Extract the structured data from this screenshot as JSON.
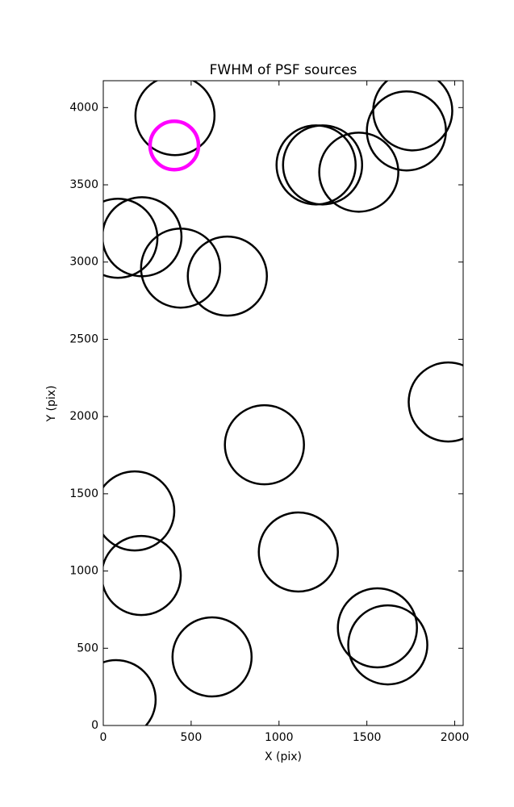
{
  "chart_data": {
    "type": "scatter",
    "title": "FWHM of PSF sources",
    "x_label": "X (pix)",
    "y_label": "Y (pix)",
    "xlim": [
      0,
      2048
    ],
    "ylim": [
      0,
      4174
    ],
    "xticks": [
      0,
      500,
      1000,
      1500,
      2000
    ],
    "yticks": [
      0,
      500,
      1000,
      1500,
      2000,
      2500,
      3000,
      3500,
      4000
    ],
    "series": [
      {
        "color": "#000000",
        "marker_size": 49,
        "x": [
          408,
          1211,
          1248,
          1454,
          1761,
          1725,
          83,
          220,
          440,
          706,
          1963,
          917,
          179,
          216,
          1110,
          1560,
          1619,
          619,
          73
        ],
        "y": [
          3948,
          3629,
          3629,
          3582,
          3979,
          3849,
          3154,
          3164,
          2961,
          2909,
          2094,
          1817,
          1389,
          971,
          1123,
          632,
          522,
          444,
          167
        ]
      },
      {
        "color": "#ff00ff",
        "marker_size": 30,
        "x": [
          404
        ],
        "y": [
          3755
        ]
      }
    ]
  }
}
